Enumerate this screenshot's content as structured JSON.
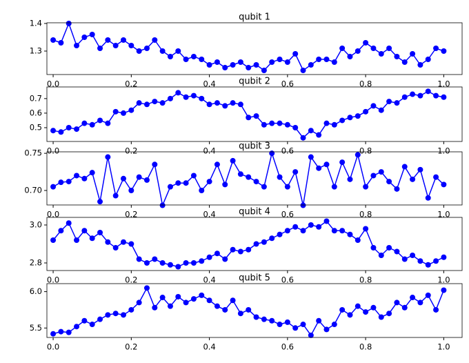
{
  "chart_data": [
    {
      "type": "line",
      "title": "qubit 1",
      "color": "#0000ff",
      "x": [
        0,
        0.02,
        0.04,
        0.06,
        0.08,
        0.1,
        0.12,
        0.14,
        0.16,
        0.18,
        0.2,
        0.22,
        0.24,
        0.26,
        0.28,
        0.3,
        0.32,
        0.34,
        0.36,
        0.38,
        0.4,
        0.42,
        0.44,
        0.46,
        0.48,
        0.5,
        0.52,
        0.54,
        0.56,
        0.58,
        0.6,
        0.62,
        0.64,
        0.66,
        0.68,
        0.7,
        0.72,
        0.74,
        0.76,
        0.78,
        0.8,
        0.82,
        0.84,
        0.86,
        0.88,
        0.9,
        0.92,
        0.94,
        0.96,
        0.98,
        1
      ],
      "values": [
        1.34,
        1.33,
        1.4,
        1.32,
        1.35,
        1.36,
        1.31,
        1.34,
        1.32,
        1.34,
        1.32,
        1.3,
        1.31,
        1.34,
        1.3,
        1.28,
        1.3,
        1.27,
        1.28,
        1.27,
        1.25,
        1.26,
        1.24,
        1.25,
        1.26,
        1.24,
        1.25,
        1.23,
        1.26,
        1.27,
        1.26,
        1.29,
        1.23,
        1.25,
        1.27,
        1.27,
        1.26,
        1.31,
        1.28,
        1.3,
        1.33,
        1.31,
        1.29,
        1.31,
        1.28,
        1.26,
        1.29,
        1.25,
        1.27,
        1.31,
        1.3
      ],
      "xlim": [
        -0.016,
        1.047
      ],
      "ylim": [
        1.215,
        1.4025
      ],
      "xticks": [
        {
          "value": 0,
          "label": "0.0"
        },
        0.2,
        0.4,
        0.6,
        0.8,
        {
          "value": 1,
          "label": "1.0"
        }
      ],
      "yticks": [
        1.3,
        1.4
      ]
    },
    {
      "type": "line",
      "title": "qubit 2",
      "color": "#0000ff",
      "x": [
        0,
        0.02,
        0.04,
        0.06,
        0.08,
        0.1,
        0.12,
        0.14,
        0.16,
        0.18,
        0.2,
        0.22,
        0.24,
        0.26,
        0.28,
        0.3,
        0.32,
        0.34,
        0.36,
        0.38,
        0.4,
        0.42,
        0.44,
        0.46,
        0.48,
        0.5,
        0.52,
        0.54,
        0.56,
        0.58,
        0.6,
        0.62,
        0.64,
        0.66,
        0.68,
        0.7,
        0.72,
        0.74,
        0.76,
        0.78,
        0.8,
        0.82,
        0.84,
        0.86,
        0.88,
        0.9,
        0.92,
        0.94,
        0.96,
        0.98,
        1
      ],
      "values": [
        0.48,
        0.47,
        0.5,
        0.49,
        0.53,
        0.52,
        0.55,
        0.53,
        0.61,
        0.6,
        0.62,
        0.67,
        0.66,
        0.68,
        0.67,
        0.7,
        0.74,
        0.71,
        0.72,
        0.7,
        0.66,
        0.67,
        0.65,
        0.67,
        0.66,
        0.57,
        0.58,
        0.52,
        0.53,
        0.53,
        0.52,
        0.5,
        0.43,
        0.48,
        0.45,
        0.53,
        0.52,
        0.55,
        0.57,
        0.58,
        0.61,
        0.65,
        0.62,
        0.68,
        0.67,
        0.71,
        0.73,
        0.72,
        0.75,
        0.72,
        0.71
      ],
      "xlim": [
        -0.016,
        1.047
      ],
      "ylim": [
        0.405,
        0.78
      ],
      "xticks": [
        {
          "value": 0,
          "label": "0.0"
        },
        0.2,
        0.4,
        0.6,
        0.8,
        {
          "value": 1,
          "label": "1.0"
        }
      ],
      "yticks": [
        0.5,
        0.6,
        0.7
      ]
    },
    {
      "type": "line",
      "title": "qubit 3",
      "color": "#0000ff",
      "x": [
        0,
        0.02,
        0.04,
        0.06,
        0.08,
        0.1,
        0.12,
        0.14,
        0.16,
        0.18,
        0.2,
        0.22,
        0.24,
        0.26,
        0.28,
        0.3,
        0.32,
        0.34,
        0.36,
        0.38,
        0.4,
        0.42,
        0.44,
        0.46,
        0.48,
        0.5,
        0.52,
        0.54,
        0.56,
        0.58,
        0.6,
        0.62,
        0.64,
        0.66,
        0.68,
        0.7,
        0.72,
        0.74,
        0.76,
        0.78,
        0.8,
        0.82,
        0.84,
        0.86,
        0.88,
        0.9,
        0.92,
        0.94,
        0.96,
        0.98,
        1
      ],
      "values": [
        0.705,
        0.711,
        0.712,
        0.72,
        0.716,
        0.724,
        0.685,
        0.745,
        0.693,
        0.716,
        0.7,
        0.718,
        0.714,
        0.735,
        0.68,
        0.705,
        0.71,
        0.71,
        0.72,
        0.7,
        0.712,
        0.735,
        0.708,
        0.74,
        0.722,
        0.718,
        0.712,
        0.705,
        0.75,
        0.718,
        0.705,
        0.725,
        0.68,
        0.745,
        0.73,
        0.735,
        0.705,
        0.738,
        0.715,
        0.748,
        0.705,
        0.72,
        0.725,
        0.712,
        0.702,
        0.732,
        0.715,
        0.728,
        0.69,
        0.718,
        0.708
      ],
      "xlim": [
        -0.016,
        1.047
      ],
      "ylim": [
        0.6805,
        0.752
      ],
      "xticks": [
        {
          "value": 0,
          "label": "0.0"
        },
        0.2,
        0.4,
        0.6,
        0.8,
        {
          "value": 1,
          "label": "1.0"
        }
      ],
      "yticks": [
        {
          "value": 0.7,
          "label": "0.70"
        },
        0.75
      ]
    },
    {
      "type": "line",
      "title": "qubit 4",
      "color": "#0000ff",
      "x": [
        0,
        0.02,
        0.04,
        0.06,
        0.08,
        0.1,
        0.12,
        0.14,
        0.16,
        0.18,
        0.2,
        0.22,
        0.24,
        0.26,
        0.28,
        0.3,
        0.32,
        0.34,
        0.36,
        0.38,
        0.4,
        0.42,
        0.44,
        0.46,
        0.48,
        0.5,
        0.52,
        0.54,
        0.56,
        0.58,
        0.6,
        0.62,
        0.64,
        0.66,
        0.68,
        0.7,
        0.72,
        0.74,
        0.76,
        0.78,
        0.8,
        0.82,
        0.84,
        0.86,
        0.88,
        0.9,
        0.92,
        0.94,
        0.96,
        0.98,
        1
      ],
      "values": [
        2.92,
        2.97,
        3.01,
        2.92,
        2.97,
        2.93,
        2.96,
        2.91,
        2.88,
        2.91,
        2.9,
        2.82,
        2.8,
        2.82,
        2.8,
        2.79,
        2.78,
        2.8,
        2.8,
        2.81,
        2.83,
        2.85,
        2.82,
        2.87,
        2.86,
        2.87,
        2.9,
        2.91,
        2.93,
        2.95,
        2.97,
        2.99,
        2.97,
        3.0,
        2.99,
        3.02,
        2.97,
        2.97,
        2.95,
        2.92,
        2.98,
        2.88,
        2.84,
        2.88,
        2.86,
        2.82,
        2.84,
        2.81,
        2.79,
        2.81,
        2.83
      ],
      "xlim": [
        -0.016,
        1.047
      ],
      "ylim": [
        2.76,
        3.04
      ],
      "xticks": [
        {
          "value": 0,
          "label": "0.0"
        },
        0.2,
        0.4,
        0.6,
        0.8,
        {
          "value": 1,
          "label": "1.0"
        }
      ],
      "yticks": [
        2.8,
        {
          "value": 3,
          "label": "3.0"
        }
      ]
    },
    {
      "type": "line",
      "title": "qubit 5",
      "color": "#0000ff",
      "x": [
        0,
        0.02,
        0.04,
        0.06,
        0.08,
        0.1,
        0.12,
        0.14,
        0.16,
        0.18,
        0.2,
        0.22,
        0.24,
        0.26,
        0.28,
        0.3,
        0.32,
        0.34,
        0.36,
        0.38,
        0.4,
        0.42,
        0.44,
        0.46,
        0.48,
        0.5,
        0.52,
        0.54,
        0.56,
        0.58,
        0.6,
        0.62,
        0.64,
        0.66,
        0.68,
        0.7,
        0.72,
        0.74,
        0.76,
        0.78,
        0.8,
        0.82,
        0.84,
        0.86,
        0.88,
        0.9,
        0.92,
        0.94,
        0.96,
        0.98,
        1
      ],
      "values": [
        5.42,
        5.45,
        5.44,
        5.52,
        5.6,
        5.55,
        5.62,
        5.68,
        5.7,
        5.68,
        5.75,
        5.85,
        6.05,
        5.78,
        5.92,
        5.8,
        5.93,
        5.85,
        5.9,
        5.95,
        5.88,
        5.8,
        5.75,
        5.88,
        5.7,
        5.75,
        5.65,
        5.62,
        5.6,
        5.55,
        5.58,
        5.5,
        5.55,
        5.4,
        5.6,
        5.48,
        5.55,
        5.75,
        5.68,
        5.8,
        5.72,
        5.78,
        5.65,
        5.7,
        5.85,
        5.78,
        5.92,
        5.85,
        5.95,
        5.75,
        6.02
      ],
      "xlim": [
        -0.016,
        1.047
      ],
      "ylim": [
        5.37,
        6.11
      ],
      "xticks": [
        {
          "value": 0,
          "label": "0.0"
        },
        0.2,
        0.4,
        0.6,
        0.8,
        {
          "value": 1,
          "label": "1.0"
        }
      ],
      "yticks": [
        5.5,
        {
          "value": 6,
          "label": "6.0"
        }
      ]
    }
  ]
}
